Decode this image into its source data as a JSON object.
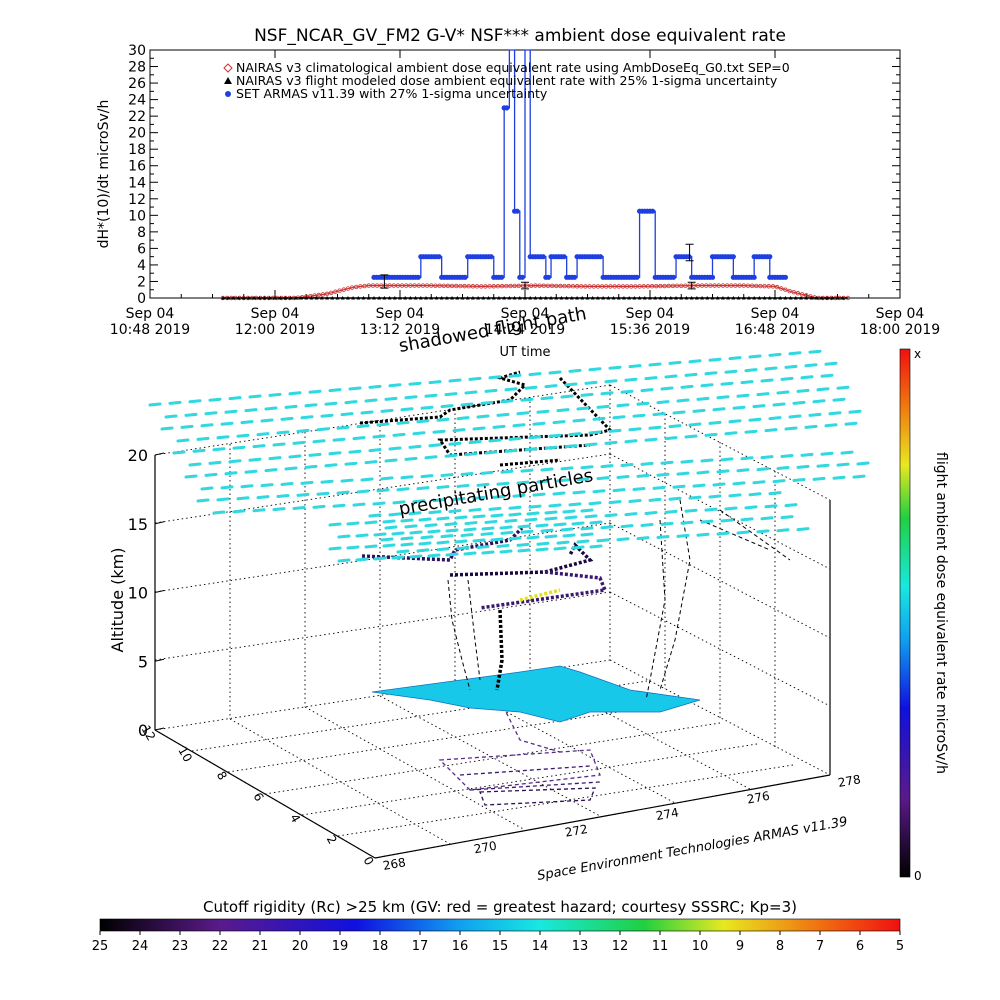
{
  "chart_data": [
    {
      "type": "line",
      "title": "NSF_NCAR_GV_FM2 G-V* NSF*** ambient dose equivalent rate",
      "xlabel": "UT time",
      "ylabel": "dH*(10)/dt microSv/h",
      "ylim": [
        0,
        30
      ],
      "yticks": [
        0,
        2,
        4,
        6,
        8,
        10,
        12,
        14,
        16,
        18,
        20,
        22,
        24,
        26,
        28,
        30
      ],
      "xticks": [
        {
          "t": 10.8,
          "line1": "Sep 04",
          "line2": "10:48 2019"
        },
        {
          "t": 12.0,
          "line1": "Sep 04",
          "line2": "12:00 2019"
        },
        {
          "t": 13.2,
          "line1": "Sep 04",
          "line2": "13:12 2019"
        },
        {
          "t": 14.4,
          "line1": "Sep 04",
          "line2": "14:24 2019"
        },
        {
          "t": 15.6,
          "line1": "Sep 04",
          "line2": "15:36 2019"
        },
        {
          "t": 16.8,
          "line1": "Sep 04",
          "line2": "16:48 2019"
        },
        {
          "t": 18.0,
          "line1": "Sep 04",
          "line2": "18:00 2019"
        }
      ],
      "xlim": [
        10.8,
        18.0
      ],
      "legend": [
        {
          "label": "NAIRAS v3 climatological ambient dose equivalent rate using AmbDoseEq_G0.txt SEP=0",
          "color": "#cc3333",
          "marker": "diamond"
        },
        {
          "label": "NAIRAS v3 flight modeled dose ambient equivalent rate with 25% 1-sigma uncertainty",
          "color": "#000000",
          "marker": "triangle"
        },
        {
          "label": "SET ARMAS v11.39 with 27% 1-sigma uncertainty",
          "color": "#1f3fe0",
          "marker": "dot"
        }
      ],
      "series": [
        {
          "name": "NAIRAS v3 climatological ambient dose equivalent rate using AmbDoseEq_G0.txt SEP=0",
          "color": "#cc3333",
          "x": [
            11.5,
            12.2,
            12.5,
            12.75,
            12.9,
            13.5,
            14.0,
            14.5,
            15.0,
            15.5,
            16.0,
            16.5,
            16.8,
            16.95,
            17.2,
            17.5
          ],
          "y": [
            0,
            0,
            0.5,
            1.3,
            1.5,
            1.5,
            1.4,
            1.5,
            1.4,
            1.4,
            1.5,
            1.5,
            1.4,
            0.8,
            0,
            0
          ]
        },
        {
          "name": "NAIRAS v3 flight modeled dose ambient equivalent rate with 25% 1-sigma uncertainty",
          "color": "#000000",
          "x": [
            11.5,
            12.5,
            13.5,
            14.5,
            15.5,
            16.5,
            17.5
          ],
          "y": [
            0,
            0,
            0,
            0,
            0,
            0,
            0
          ]
        },
        {
          "name": "SET ARMAS v11.39 with 27% 1-sigma uncertainty",
          "color": "#1f3fe0",
          "x": [
            12.95,
            13.35,
            13.4,
            13.55,
            13.6,
            13.8,
            13.85,
            14.0,
            14.1,
            14.15,
            14.2,
            14.25,
            14.3,
            14.35,
            14.4,
            14.45,
            14.5,
            14.6,
            14.65,
            14.8,
            14.9,
            15.0,
            15.15,
            15.2,
            15.4,
            15.5,
            15.6,
            15.65,
            15.8,
            15.85,
            16.0,
            16.2,
            16.4,
            16.6,
            16.75,
            16.9
          ],
          "y": [
            2.5,
            2.5,
            5,
            5,
            2.5,
            2.5,
            5,
            5,
            2.5,
            2.5,
            23,
            30,
            10.5,
            2.5,
            30,
            5,
            5,
            2.5,
            5,
            2.5,
            5,
            5,
            2.5,
            2.5,
            2.5,
            10.5,
            10.5,
            2.5,
            2.5,
            5,
            2.5,
            5,
            2.5,
            5,
            2.5,
            2.5
          ]
        }
      ],
      "error_bars": [
        {
          "x": 13.05,
          "y": 2.0,
          "err": 0.8
        },
        {
          "x": 14.4,
          "y": 1.5,
          "err": 0.4
        },
        {
          "x": 15.98,
          "y": 5.5,
          "err": 1.0
        },
        {
          "x": 16.0,
          "y": 1.5,
          "err": 0.4
        }
      ]
    },
    {
      "type": "scatter",
      "title": "",
      "zlabel": "Altitude (km)",
      "zticks": [
        0,
        5,
        10,
        15,
        20
      ],
      "zlim": [
        0,
        20
      ],
      "lat_ticks": [
        0,
        2,
        4,
        6,
        8,
        10,
        12
      ],
      "lon_ticks": [
        268,
        270,
        272,
        274,
        276,
        278
      ],
      "annotations": [
        "shadowed flight path",
        "precipitating particles"
      ],
      "credit": "Space Environment Technologies ARMAS v11.39",
      "flight_path_altitude_km": [
        0,
        2,
        6,
        10,
        12,
        12,
        12,
        12,
        2,
        0
      ],
      "colorbar": {
        "label": "flight ambient dose equivalent rate microSv/h",
        "top": "x",
        "bottom": "0"
      }
    },
    {
      "type": "heatmap",
      "title": "Cutoff rigidity (Rc) >25 km (GV: red = greatest hazard; courtesy SSSRC; Kp=3)",
      "colorbar_ticks": [
        "25",
        "24",
        "23",
        "22",
        "21",
        "20",
        "19",
        "18",
        "17",
        "16",
        "15",
        "14",
        "13",
        "12",
        "11",
        "10",
        "9",
        "8",
        "7",
        "6",
        "5"
      ]
    }
  ]
}
